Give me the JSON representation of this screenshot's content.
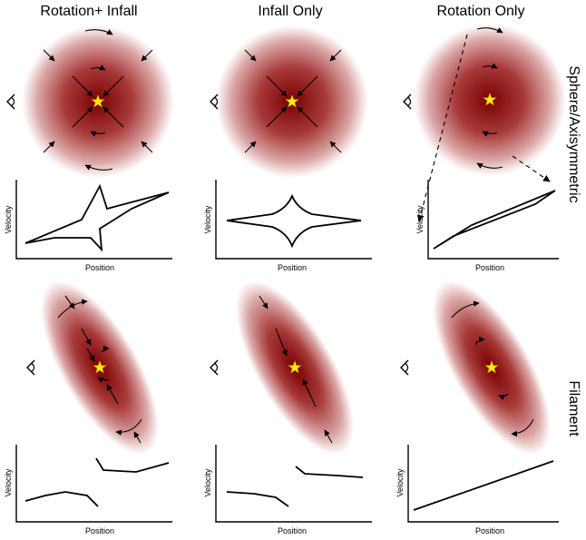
{
  "column_titles": [
    "Rotation+ Infall",
    "Infall Only",
    "Rotation Only"
  ],
  "row_labels": [
    "Sphere/Axisymmetric",
    "Filament"
  ],
  "axis_labels": {
    "x": "Position",
    "y": "Velocity"
  },
  "colors": {
    "core": "#7a0000",
    "mid": "#c06a6a",
    "edge": "#ffffff",
    "star": "#ffee00",
    "ink": "#000000"
  },
  "icons": [
    "observer-eye-icon",
    "protostar-icon",
    "infall-arrow-icon",
    "rotation-arrow-icon"
  ],
  "panels": [
    {
      "row": "Sphere/Axisymmetric",
      "column": "Rotation+ Infall",
      "geometry": "sphere",
      "motions": [
        "rotation",
        "infall"
      ],
      "velocity_profile": "asymmetric-spike"
    },
    {
      "row": "Sphere/Axisymmetric",
      "column": "Infall Only",
      "geometry": "sphere",
      "motions": [
        "infall"
      ],
      "velocity_profile": "symmetric-spike"
    },
    {
      "row": "Sphere/Axisymmetric",
      "column": "Rotation Only",
      "geometry": "sphere",
      "motions": [
        "rotation"
      ],
      "velocity_profile": "linear-gradient"
    },
    {
      "row": "Filament",
      "column": "Rotation+ Infall",
      "geometry": "filament",
      "motions": [
        "rotation",
        "infall"
      ],
      "velocity_profile": "offset-jump"
    },
    {
      "row": "Filament",
      "column": "Infall Only",
      "geometry": "filament",
      "motions": [
        "infall"
      ],
      "velocity_profile": "symmetric-jump"
    },
    {
      "row": "Filament",
      "column": "Rotation Only",
      "geometry": "filament",
      "motions": [
        "rotation"
      ],
      "velocity_profile": "linear-gradient"
    }
  ]
}
